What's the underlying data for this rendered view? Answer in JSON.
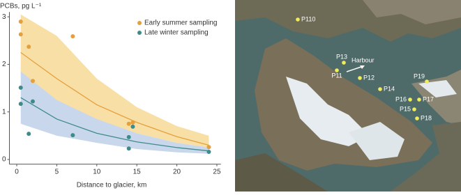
{
  "chart_data": {
    "type": "scatter",
    "y_label": "PCBs, pg L⁻¹",
    "x_label": "Distance to glacier, km",
    "xlim": [
      -1.7,
      25.5
    ],
    "ylim": [
      -0.1,
      3.1
    ],
    "xticks": [
      0,
      5,
      10,
      15,
      20,
      25
    ],
    "yticks": [
      0,
      1,
      2,
      3
    ],
    "legend": "top-right",
    "series": [
      {
        "name": "Early summer sampling",
        "color": "#e5a03c",
        "x": [
          0.5,
          0.5,
          1.5,
          2,
          7,
          14,
          14.5,
          24
        ],
        "values": [
          2.9,
          2.63,
          2.37,
          1.65,
          2.59,
          0.75,
          0.78,
          0.26
        ]
      },
      {
        "name": "Late winter sampling",
        "color": "#3e8b8a",
        "x": [
          0.5,
          0.5,
          2,
          1.5,
          7,
          14,
          14.5,
          14,
          24
        ],
        "values": [
          1.51,
          1.17,
          1.22,
          0.54,
          0.51,
          0.47,
          0.69,
          0.23,
          0.16
        ]
      }
    ],
    "fits": [
      {
        "color": "#e5a03c",
        "band_color": "#f8dfa6",
        "x": [
          0.5,
          5,
          10,
          15,
          20,
          24
        ],
        "values": [
          2.25,
          1.7,
          1.15,
          0.78,
          0.48,
          0.3
        ],
        "upper": [
          3.05,
          2.6,
          1.7,
          1.1,
          0.7,
          0.5
        ],
        "lower": [
          1.75,
          1.2,
          0.8,
          0.55,
          0.35,
          0.25
        ]
      },
      {
        "color": "#3e8b8a",
        "band_color": "#c9d7ec",
        "x": [
          0.5,
          5,
          10,
          15,
          20,
          24
        ],
        "values": [
          1.3,
          0.85,
          0.55,
          0.37,
          0.25,
          0.18
        ],
        "upper": [
          1.85,
          1.25,
          0.85,
          0.55,
          0.35,
          0.25
        ],
        "lower": [
          0.75,
          0.5,
          0.35,
          0.22,
          0.15,
          0.12
        ]
      }
    ]
  },
  "map": {
    "annotation": "Harbour",
    "sites": [
      "P110",
      "P13",
      "P11",
      "P12",
      "P14",
      "P19",
      "P16",
      "P17",
      "P15",
      "P18"
    ]
  }
}
